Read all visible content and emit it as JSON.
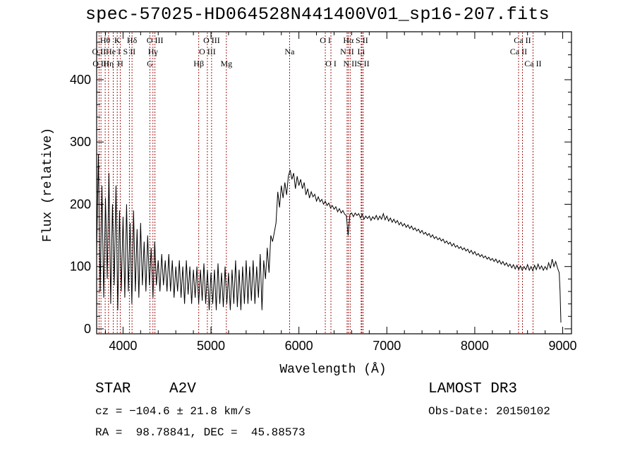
{
  "title": "spec-57025-HD064528N441400V01_sp16-207.fits",
  "info": {
    "object_class": "STAR",
    "subclass": "A2V",
    "survey": "LAMOST DR3",
    "cz": "cz = −104.6 ± 21.8 km/s",
    "obs_date": "Obs-Date: 20150102",
    "coords": "RA =  98.78841, DEC =  45.88573"
  },
  "chart_data": {
    "type": "line",
    "xlabel": "Wavelength (Å)",
    "ylabel": "Flux (relative)",
    "xlim": [
      3700,
      9100
    ],
    "ylim": [
      -8,
      477
    ],
    "xticks": [
      4000,
      5000,
      6000,
      7000,
      8000,
      9000
    ],
    "yticks": [
      0,
      100,
      200,
      300,
      400
    ],
    "line_color": "#000000",
    "marker_color": "#990000",
    "lines": [
      {
        "label": "O II",
        "wl": 3727,
        "row": 1
      },
      {
        "label": "Hθ",
        "wl": 3797,
        "row": 0
      },
      {
        "label": "O III",
        "wl": 3749,
        "row": 2
      },
      {
        "label": "He I",
        "wl": 3889,
        "row": 1
      },
      {
        "label": "Hη",
        "wl": 3835,
        "row": 2
      },
      {
        "label": "K",
        "wl": 3934,
        "row": 0
      },
      {
        "label": "H",
        "wl": 3968,
        "row": 2
      },
      {
        "label": "S II",
        "wl": 4072,
        "row": 1
      },
      {
        "label": "Hδ",
        "wl": 4102,
        "row": 0
      },
      {
        "label": "O III",
        "wl": 4363,
        "row": 0
      },
      {
        "label": "Hγ",
        "wl": 4340,
        "row": 1
      },
      {
        "label": "G",
        "wl": 4305,
        "row": 2
      },
      {
        "label": "Hβ",
        "wl": 4861,
        "row": 2
      },
      {
        "label": "O III",
        "wl": 4959,
        "row": 1
      },
      {
        "label": "O III",
        "wl": 5007,
        "row": 0
      },
      {
        "label": "Mg",
        "wl": 5175,
        "row": 2
      },
      {
        "label": "Na",
        "wl": 5894,
        "row": 1
      },
      {
        "label": "O I",
        "wl": 6300,
        "row": 0
      },
      {
        "label": "O I",
        "wl": 6364,
        "row": 2
      },
      {
        "label": "N II",
        "wl": 6548,
        "row": 1
      },
      {
        "label": "Hα",
        "wl": 6563,
        "row": 0
      },
      {
        "label": "N II",
        "wl": 6583,
        "row": 2
      },
      {
        "label": "Li",
        "wl": 6708,
        "row": 1
      },
      {
        "label": "S II",
        "wl": 6716,
        "row": 0
      },
      {
        "label": "S II",
        "wl": 6731,
        "row": 2
      },
      {
        "label": "Ca II",
        "wl": 8498,
        "row": 1
      },
      {
        "label": "Ca II",
        "wl": 8542,
        "row": 0
      },
      {
        "label": "Ca II",
        "wl": 8662,
        "row": 2
      }
    ],
    "spectrum": [
      [
        3700,
        120
      ],
      [
        3720,
        280
      ],
      [
        3740,
        60
      ],
      [
        3760,
        230
      ],
      [
        3780,
        50
      ],
      [
        3800,
        210
      ],
      [
        3820,
        80
      ],
      [
        3840,
        250
      ],
      [
        3860,
        40
      ],
      [
        3880,
        200
      ],
      [
        3900,
        70
      ],
      [
        3920,
        230
      ],
      [
        3940,
        30
      ],
      [
        3960,
        190
      ],
      [
        3980,
        60
      ],
      [
        4000,
        180
      ],
      [
        4020,
        50
      ],
      [
        4040,
        200
      ],
      [
        4060,
        60
      ],
      [
        4080,
        170
      ],
      [
        4100,
        40
      ],
      [
        4120,
        190
      ],
      [
        4140,
        60
      ],
      [
        4160,
        160
      ],
      [
        4180,
        50
      ],
      [
        4200,
        170
      ],
      [
        4220,
        70
      ],
      [
        4240,
        140
      ],
      [
        4260,
        60
      ],
      [
        4280,
        150
      ],
      [
        4300,
        70
      ],
      [
        4320,
        130
      ],
      [
        4340,
        50
      ],
      [
        4360,
        140
      ],
      [
        4380,
        70
      ],
      [
        4400,
        110
      ],
      [
        4420,
        60
      ],
      [
        4440,
        120
      ],
      [
        4460,
        70
      ],
      [
        4480,
        110
      ],
      [
        4500,
        60
      ],
      [
        4520,
        120
      ],
      [
        4540,
        60
      ],
      [
        4560,
        110
      ],
      [
        4580,
        50
      ],
      [
        4600,
        100
      ],
      [
        4620,
        60
      ],
      [
        4640,
        110
      ],
      [
        4660,
        50
      ],
      [
        4680,
        100
      ],
      [
        4700,
        40
      ],
      [
        4720,
        110
      ],
      [
        4740,
        55
      ],
      [
        4760,
        100
      ],
      [
        4780,
        40
      ],
      [
        4800,
        95
      ],
      [
        4820,
        50
      ],
      [
        4840,
        100
      ],
      [
        4860,
        40
      ],
      [
        4880,
        95
      ],
      [
        4900,
        45
      ],
      [
        4920,
        105
      ],
      [
        4940,
        40
      ],
      [
        4960,
        95
      ],
      [
        4980,
        30
      ],
      [
        5000,
        90
      ],
      [
        5020,
        40
      ],
      [
        5040,
        95
      ],
      [
        5060,
        30
      ],
      [
        5080,
        105
      ],
      [
        5100,
        40
      ],
      [
        5120,
        90
      ],
      [
        5140,
        35
      ],
      [
        5160,
        100
      ],
      [
        5180,
        40
      ],
      [
        5200,
        90
      ],
      [
        5220,
        30
      ],
      [
        5240,
        95
      ],
      [
        5260,
        40
      ],
      [
        5280,
        110
      ],
      [
        5300,
        35
      ],
      [
        5320,
        95
      ],
      [
        5340,
        30
      ],
      [
        5360,
        100
      ],
      [
        5380,
        40
      ],
      [
        5400,
        110
      ],
      [
        5420,
        40
      ],
      [
        5440,
        100
      ],
      [
        5460,
        45
      ],
      [
        5480,
        110
      ],
      [
        5500,
        40
      ],
      [
        5520,
        100
      ],
      [
        5540,
        50
      ],
      [
        5560,
        120
      ],
      [
        5580,
        30
      ],
      [
        5600,
        110
      ],
      [
        5620,
        80
      ],
      [
        5640,
        130
      ],
      [
        5660,
        90
      ],
      [
        5680,
        150
      ],
      [
        5700,
        140
      ],
      [
        5720,
        155
      ],
      [
        5740,
        170
      ],
      [
        5760,
        220
      ],
      [
        5780,
        195
      ],
      [
        5800,
        230
      ],
      [
        5820,
        210
      ],
      [
        5840,
        235
      ],
      [
        5860,
        215
      ],
      [
        5880,
        245
      ],
      [
        5900,
        255
      ],
      [
        5920,
        240
      ],
      [
        5940,
        250
      ],
      [
        5960,
        225
      ],
      [
        5980,
        245
      ],
      [
        6000,
        230
      ],
      [
        6020,
        240
      ],
      [
        6040,
        225
      ],
      [
        6060,
        235
      ],
      [
        6080,
        215
      ],
      [
        6100,
        225
      ],
      [
        6120,
        210
      ],
      [
        6140,
        220
      ],
      [
        6160,
        212
      ],
      [
        6180,
        216
      ],
      [
        6200,
        205
      ],
      [
        6220,
        212
      ],
      [
        6240,
        204
      ],
      [
        6260,
        208
      ],
      [
        6280,
        200
      ],
      [
        6300,
        205
      ],
      [
        6320,
        198
      ],
      [
        6340,
        202
      ],
      [
        6360,
        194
      ],
      [
        6380,
        198
      ],
      [
        6400,
        192
      ],
      [
        6420,
        196
      ],
      [
        6440,
        188
      ],
      [
        6460,
        193
      ],
      [
        6480,
        186
      ],
      [
        6500,
        190
      ],
      [
        6520,
        184
      ],
      [
        6540,
        182
      ],
      [
        6560,
        150
      ],
      [
        6580,
        183
      ],
      [
        6600,
        186
      ],
      [
        6620,
        180
      ],
      [
        6640,
        186
      ],
      [
        6660,
        182
      ],
      [
        6680,
        185
      ],
      [
        6700,
        178
      ],
      [
        6720,
        184
      ],
      [
        6740,
        176
      ],
      [
        6760,
        181
      ],
      [
        6780,
        177
      ],
      [
        6800,
        181
      ],
      [
        6820,
        174
      ],
      [
        6840,
        180
      ],
      [
        6860,
        176
      ],
      [
        6880,
        182
      ],
      [
        6900,
        175
      ],
      [
        6920,
        181
      ],
      [
        6940,
        176
      ],
      [
        6960,
        185
      ],
      [
        6980,
        175
      ],
      [
        7000,
        181
      ],
      [
        7020,
        173
      ],
      [
        7040,
        178
      ],
      [
        7060,
        171
      ],
      [
        7080,
        176
      ],
      [
        7100,
        170
      ],
      [
        7120,
        174
      ],
      [
        7140,
        167
      ],
      [
        7160,
        171
      ],
      [
        7180,
        165
      ],
      [
        7200,
        169
      ],
      [
        7220,
        163
      ],
      [
        7240,
        167
      ],
      [
        7260,
        161
      ],
      [
        7280,
        165
      ],
      [
        7300,
        159
      ],
      [
        7320,
        162
      ],
      [
        7340,
        157
      ],
      [
        7360,
        160
      ],
      [
        7380,
        154
      ],
      [
        7400,
        158
      ],
      [
        7420,
        152
      ],
      [
        7440,
        155
      ],
      [
        7460,
        150
      ],
      [
        7480,
        153
      ],
      [
        7500,
        147
      ],
      [
        7520,
        151
      ],
      [
        7540,
        145
      ],
      [
        7560,
        148
      ],
      [
        7580,
        143
      ],
      [
        7600,
        146
      ],
      [
        7620,
        141
      ],
      [
        7640,
        144
      ],
      [
        7660,
        138
      ],
      [
        7680,
        141
      ],
      [
        7700,
        136
      ],
      [
        7720,
        139
      ],
      [
        7740,
        133
      ],
      [
        7760,
        137
      ],
      [
        7780,
        131
      ],
      [
        7800,
        134
      ],
      [
        7820,
        129
      ],
      [
        7840,
        132
      ],
      [
        7860,
        127
      ],
      [
        7880,
        130
      ],
      [
        7900,
        125
      ],
      [
        7920,
        128
      ],
      [
        7940,
        122
      ],
      [
        7960,
        126
      ],
      [
        7980,
        120
      ],
      [
        8000,
        124
      ],
      [
        8020,
        118
      ],
      [
        8040,
        121
      ],
      [
        8060,
        116
      ],
      [
        8080,
        119
      ],
      [
        8100,
        114
      ],
      [
        8120,
        117
      ],
      [
        8140,
        112
      ],
      [
        8160,
        115
      ],
      [
        8180,
        110
      ],
      [
        8200,
        113
      ],
      [
        8220,
        108
      ],
      [
        8240,
        112
      ],
      [
        8260,
        106
      ],
      [
        8280,
        110
      ],
      [
        8300,
        104
      ],
      [
        8320,
        108
      ],
      [
        8340,
        102
      ],
      [
        8360,
        106
      ],
      [
        8380,
        100
      ],
      [
        8400,
        104
      ],
      [
        8420,
        98
      ],
      [
        8440,
        103
      ],
      [
        8460,
        96
      ],
      [
        8480,
        102
      ],
      [
        8500,
        95
      ],
      [
        8520,
        101
      ],
      [
        8540,
        94
      ],
      [
        8560,
        100
      ],
      [
        8580,
        95
      ],
      [
        8600,
        103
      ],
      [
        8620,
        94
      ],
      [
        8640,
        100
      ],
      [
        8660,
        93
      ],
      [
        8680,
        102
      ],
      [
        8700,
        95
      ],
      [
        8720,
        104
      ],
      [
        8740,
        96
      ],
      [
        8760,
        101
      ],
      [
        8780,
        94
      ],
      [
        8800,
        100
      ],
      [
        8820,
        95
      ],
      [
        8840,
        106
      ],
      [
        8860,
        97
      ],
      [
        8880,
        112
      ],
      [
        8900,
        100
      ],
      [
        8920,
        108
      ],
      [
        8940,
        98
      ],
      [
        8960,
        90
      ],
      [
        8970,
        60
      ],
      [
        8980,
        10
      ]
    ]
  }
}
